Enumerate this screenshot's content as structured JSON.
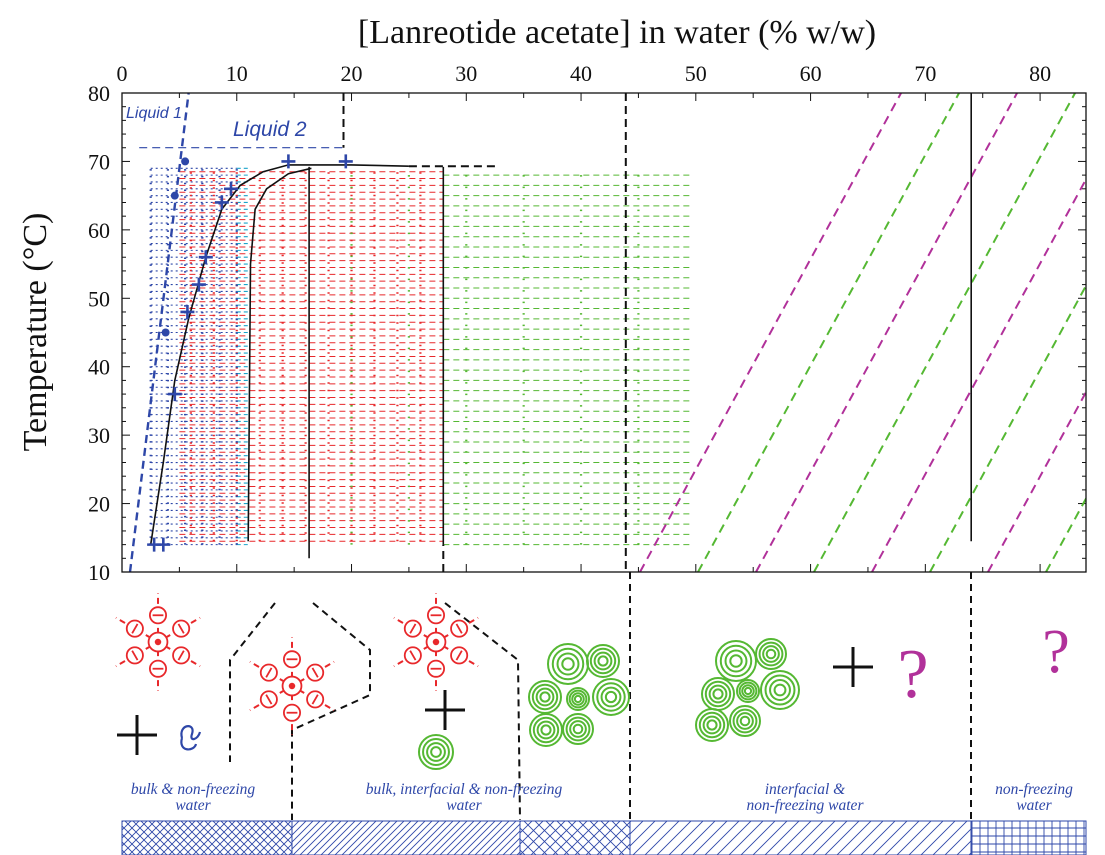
{
  "chart_data": {
    "type": "phase-diagram",
    "title": "[Lanreotide acetate] in water (% w/w)",
    "xlabel": "[Lanreotide acetate] in water (% w/w)",
    "ylabel": "Temperature (°C)",
    "xlim": [
      0,
      84
    ],
    "ylim": [
      10,
      80
    ],
    "x_ticks": [
      "0",
      "10",
      "20",
      "30",
      "40",
      "50",
      "60",
      "70",
      "80"
    ],
    "y_ticks": [
      "10",
      "20",
      "30",
      "40",
      "50",
      "60",
      "70",
      "80"
    ],
    "phase_labels": [
      "Liquid 1",
      "Liquid 2"
    ],
    "colors": {
      "liquid1": "#2e47a8",
      "liquid2": "#1aa3c9",
      "red": "#e8282b",
      "green": "#55b833",
      "magenta": "#b1319a",
      "black": "#111111",
      "label_blue": "#2e47a8"
    },
    "cross_points": [
      {
        "x": 2.8,
        "y": 14
      },
      {
        "x": 3.6,
        "y": 14
      },
      {
        "x": 4.6,
        "y": 36
      },
      {
        "x": 5.7,
        "y": 48
      },
      {
        "x": 6.7,
        "y": 52
      },
      {
        "x": 7.3,
        "y": 56
      },
      {
        "x": 8.7,
        "y": 64
      },
      {
        "x": 9.5,
        "y": 66
      },
      {
        "x": 14.5,
        "y": 70
      },
      {
        "x": 19.5,
        "y": 70
      }
    ],
    "dot_points": [
      {
        "x": 3.8,
        "y": 45
      },
      {
        "x": 4.6,
        "y": 65
      },
      {
        "x": 5.5,
        "y": 70
      }
    ],
    "boundaries": {
      "liquid1_dashed": [
        [
          0.7,
          10
        ],
        [
          5.8,
          80
        ]
      ],
      "liquid2_dashed_top": [
        [
          19.3,
          80
        ],
        [
          19.3,
          72
        ]
      ],
      "liquid_top_dashed": [
        [
          1.5,
          72
        ],
        [
          19.3,
          72
        ]
      ],
      "outer_curve": [
        [
          2.5,
          14
        ],
        [
          3.6,
          26
        ],
        [
          4.6,
          38
        ],
        [
          5.8,
          47
        ],
        [
          7.3,
          56
        ],
        [
          8.7,
          63
        ],
        [
          10.3,
          66.5
        ],
        [
          12.3,
          68.5
        ],
        [
          14.5,
          69.5
        ],
        [
          20,
          69.5
        ],
        [
          25,
          69.3
        ]
      ],
      "inner_curve": [
        [
          11,
          14.5
        ],
        [
          11.2,
          55
        ],
        [
          11.6,
          63
        ],
        [
          12.6,
          66
        ],
        [
          14.5,
          68.2
        ],
        [
          16.5,
          69
        ]
      ],
      "solid_16": [
        [
          16.3,
          12
        ],
        [
          16.3,
          69.2
        ]
      ],
      "solid_28": [
        [
          28,
          14
        ],
        [
          28,
          69.2
        ]
      ],
      "top_dashed": [
        [
          25,
          69.3
        ],
        [
          32.5,
          69.3
        ]
      ],
      "dashed_28": [
        [
          28,
          10
        ],
        [
          28,
          14
        ]
      ],
      "dashed_44": [
        [
          43.9,
          80
        ],
        [
          43.9,
          10
        ]
      ],
      "solid_74": [
        [
          74,
          80
        ],
        [
          74,
          14.5
        ]
      ]
    },
    "water_regions": [
      {
        "label": "bulk & non-freezing water",
        "lines": [
          "bulk & non-freezing",
          "water"
        ]
      },
      {
        "label": "bulk, interfacial & non-freezing water",
        "lines": [
          "bulk, interfacial & non-freezing",
          "water"
        ]
      },
      {
        "label": "interfacial & non-freezing water",
        "lines": [
          "interfacial &",
          "non-freezing water"
        ]
      },
      {
        "label": "non-freezing water",
        "lines": [
          "non-freezing",
          "water"
        ]
      }
    ],
    "legend_glyphs": [
      "+",
      "?"
    ],
    "grid": false
  }
}
